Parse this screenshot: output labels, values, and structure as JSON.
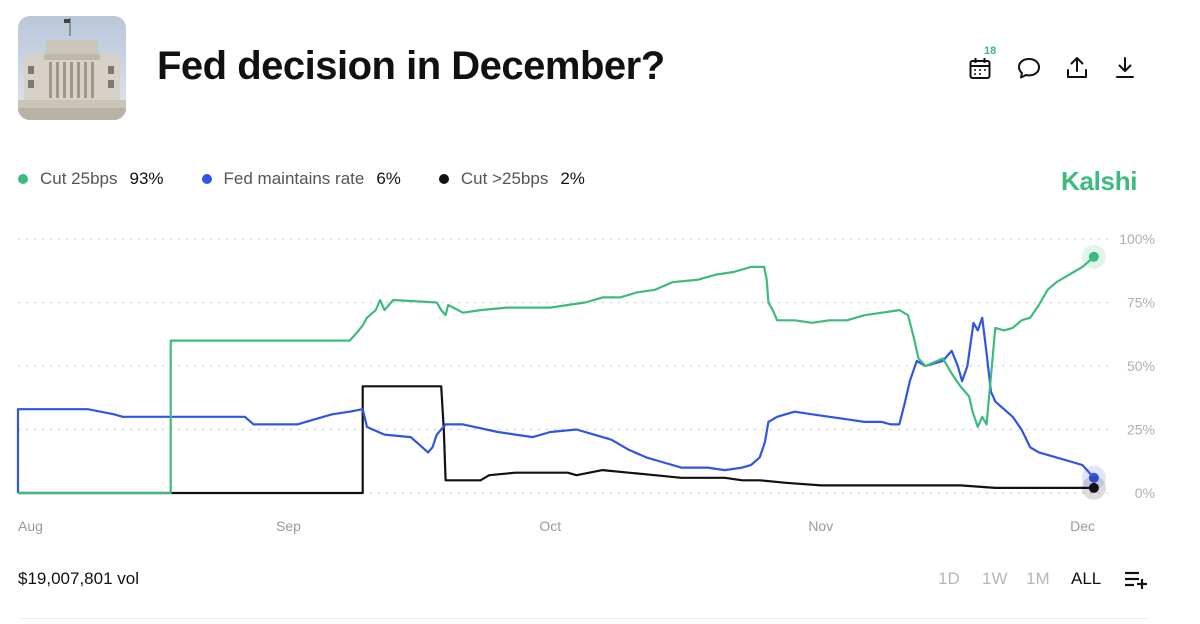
{
  "title": "Fed decision in December?",
  "brand": "Kalshi",
  "actions": {
    "calendar_badge": "18"
  },
  "legend": [
    {
      "label": "Cut 25bps",
      "value": "93%",
      "color": "#3dbb7c"
    },
    {
      "label": "Fed maintains rate",
      "value": "6%",
      "color": "#2f55e4"
    },
    {
      "label": "Cut >25bps",
      "value": "2%",
      "color": "#111111"
    }
  ],
  "volume": "$19,007,801 vol",
  "ranges": [
    {
      "label": "1D",
      "active": false
    },
    {
      "label": "1W",
      "active": false
    },
    {
      "label": "1M",
      "active": false
    },
    {
      "label": "ALL",
      "active": true
    }
  ],
  "chart_data": {
    "type": "line",
    "title": "Fed decision in December?",
    "x_unit": "days since Aug 1",
    "x_ticks": [
      {
        "label": "Aug",
        "day": 0
      },
      {
        "label": "Sep",
        "day": 31
      },
      {
        "label": "Oct",
        "day": 61
      },
      {
        "label": "Nov",
        "day": 92
      },
      {
        "label": "Dec",
        "day": 122
      }
    ],
    "y_ticks": [
      "0%",
      "25%",
      "50%",
      "75%",
      "100%"
    ],
    "ylim": [
      0,
      100
    ],
    "xlim": [
      0,
      124
    ],
    "series": [
      {
        "name": "Cut 25bps",
        "color": "#3dbb7c",
        "end_value": 93,
        "points": [
          [
            0,
            0
          ],
          [
            17.5,
            0
          ],
          [
            17.5,
            60
          ],
          [
            38,
            60
          ],
          [
            38.8,
            63
          ],
          [
            39.5,
            66
          ],
          [
            40,
            69
          ],
          [
            41,
            72
          ],
          [
            41.5,
            76
          ],
          [
            42,
            72
          ],
          [
            43,
            76
          ],
          [
            48,
            75
          ],
          [
            48.5,
            72
          ],
          [
            49,
            70
          ],
          [
            49.3,
            74
          ],
          [
            51,
            71
          ],
          [
            53,
            72
          ],
          [
            56,
            73
          ],
          [
            59,
            73
          ],
          [
            61,
            73
          ],
          [
            63,
            74
          ],
          [
            65,
            75
          ],
          [
            67,
            77
          ],
          [
            69,
            77
          ],
          [
            71,
            79
          ],
          [
            73,
            80
          ],
          [
            75,
            83
          ],
          [
            78,
            84
          ],
          [
            80,
            86
          ],
          [
            82,
            87
          ],
          [
            84,
            89
          ],
          [
            85.5,
            89
          ],
          [
            85.8,
            84
          ],
          [
            86,
            75
          ],
          [
            86.5,
            72
          ],
          [
            87,
            68
          ],
          [
            89,
            68
          ],
          [
            91,
            67
          ],
          [
            93,
            68
          ],
          [
            95,
            68
          ],
          [
            97,
            70
          ],
          [
            99,
            71
          ],
          [
            101,
            72
          ],
          [
            102,
            70
          ],
          [
            102.6,
            62
          ],
          [
            103.2,
            53
          ],
          [
            104,
            50
          ],
          [
            106,
            53
          ],
          [
            107,
            47
          ],
          [
            108,
            42
          ],
          [
            108.5,
            40
          ],
          [
            109,
            38
          ],
          [
            109.4,
            32
          ],
          [
            110,
            26
          ],
          [
            110.5,
            30
          ],
          [
            111,
            27
          ],
          [
            112,
            65
          ],
          [
            113,
            64
          ],
          [
            114,
            65
          ],
          [
            115,
            68
          ],
          [
            116,
            69
          ],
          [
            117,
            74
          ],
          [
            118,
            80
          ],
          [
            119,
            83
          ],
          [
            120,
            85
          ],
          [
            121,
            87
          ],
          [
            122,
            89
          ],
          [
            123.3,
            93
          ]
        ]
      },
      {
        "name": "Fed maintains rate",
        "color": "#2f55e4",
        "end_value": 6,
        "points": [
          [
            0,
            0
          ],
          [
            0,
            33
          ],
          [
            8,
            33
          ],
          [
            11,
            31
          ],
          [
            12,
            30
          ],
          [
            20,
            30
          ],
          [
            26,
            30
          ],
          [
            27,
            27
          ],
          [
            32,
            27
          ],
          [
            34,
            29
          ],
          [
            36,
            31
          ],
          [
            38,
            32
          ],
          [
            39.5,
            33
          ],
          [
            40,
            26
          ],
          [
            42,
            23
          ],
          [
            45,
            22
          ],
          [
            47,
            16
          ],
          [
            47.5,
            18
          ],
          [
            48,
            23
          ],
          [
            49,
            27
          ],
          [
            51,
            27
          ],
          [
            55,
            24
          ],
          [
            57,
            23
          ],
          [
            59,
            22
          ],
          [
            61,
            24
          ],
          [
            64,
            25
          ],
          [
            66,
            23
          ],
          [
            68,
            21
          ],
          [
            70,
            17
          ],
          [
            72,
            14
          ],
          [
            74,
            12
          ],
          [
            76,
            10
          ],
          [
            79,
            10
          ],
          [
            81,
            9
          ],
          [
            83,
            10
          ],
          [
            84,
            11
          ],
          [
            85,
            14
          ],
          [
            85.6,
            20
          ],
          [
            86,
            28
          ],
          [
            87,
            30
          ],
          [
            89,
            32
          ],
          [
            91,
            31
          ],
          [
            93,
            30
          ],
          [
            95,
            29
          ],
          [
            97,
            28
          ],
          [
            99,
            28
          ],
          [
            100,
            27
          ],
          [
            101,
            27
          ],
          [
            101.6,
            35
          ],
          [
            102.2,
            44
          ],
          [
            103,
            52
          ],
          [
            104,
            50
          ],
          [
            106,
            52
          ],
          [
            107,
            56
          ],
          [
            107.7,
            50
          ],
          [
            108.2,
            44
          ],
          [
            108.8,
            50
          ],
          [
            109.5,
            67
          ],
          [
            110,
            64
          ],
          [
            110.5,
            69
          ],
          [
            111,
            55
          ],
          [
            111.5,
            40
          ],
          [
            112,
            36
          ],
          [
            113,
            33
          ],
          [
            114,
            30
          ],
          [
            115,
            25
          ],
          [
            116,
            18
          ],
          [
            117,
            16
          ],
          [
            118,
            15
          ],
          [
            119,
            14
          ],
          [
            121,
            12
          ],
          [
            122,
            11
          ],
          [
            123.3,
            6
          ]
        ]
      },
      {
        "name": "Cut >25bps",
        "color": "#111111",
        "end_value": 2,
        "points": [
          [
            0,
            0
          ],
          [
            39.5,
            0
          ],
          [
            39.5,
            42
          ],
          [
            48.5,
            42
          ],
          [
            48.8,
            25
          ],
          [
            49,
            5
          ],
          [
            53,
            5
          ],
          [
            54,
            7
          ],
          [
            57,
            8
          ],
          [
            61,
            8
          ],
          [
            63,
            8
          ],
          [
            64,
            7
          ],
          [
            67,
            9
          ],
          [
            70,
            8
          ],
          [
            73,
            7
          ],
          [
            76,
            6
          ],
          [
            79,
            6
          ],
          [
            81,
            6
          ],
          [
            83,
            5
          ],
          [
            85,
            5
          ],
          [
            88,
            4
          ],
          [
            92,
            3
          ],
          [
            96,
            3
          ],
          [
            100,
            3
          ],
          [
            104,
            3
          ],
          [
            108,
            3
          ],
          [
            112,
            2
          ],
          [
            116,
            2
          ],
          [
            120,
            2
          ],
          [
            123.3,
            2
          ]
        ]
      }
    ]
  }
}
